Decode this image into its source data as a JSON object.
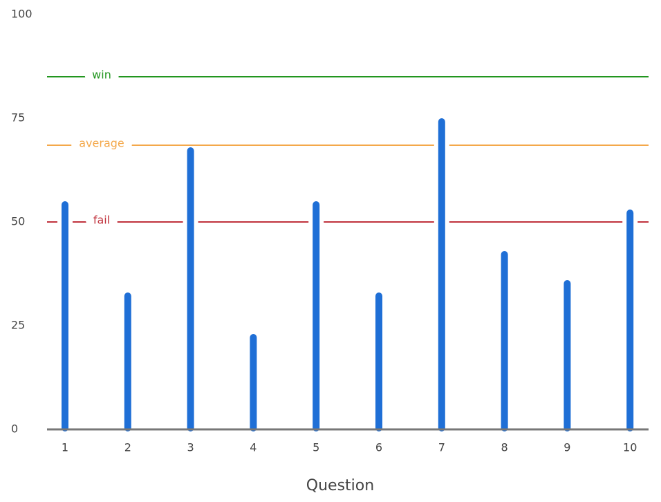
{
  "chart_data": {
    "type": "bar",
    "x_label": "Question",
    "categories": [
      "1",
      "2",
      "3",
      "4",
      "5",
      "6",
      "7",
      "8",
      "9",
      "10"
    ],
    "values": [
      55,
      33,
      68,
      23,
      55,
      33,
      75,
      43,
      36,
      53
    ],
    "color": "#1f6fd6",
    "ylim": [
      0,
      100
    ],
    "yticks": [
      0,
      25,
      50,
      75,
      100
    ],
    "reference_lines": [
      {
        "label": "win",
        "value": 85,
        "color": "#22961f"
      },
      {
        "label": "average",
        "value": 68.5,
        "color": "#f4a84a"
      },
      {
        "label": "fail",
        "value": 50,
        "color": "#c0323c"
      }
    ]
  }
}
